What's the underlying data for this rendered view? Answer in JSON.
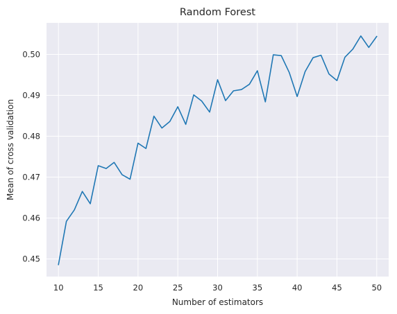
{
  "chart_data": {
    "type": "line",
    "title": "Random Forest",
    "xlabel": "Number of estimators",
    "ylabel": "Mean of cross validation",
    "xlim": [
      8.5,
      51.5
    ],
    "ylim": [
      0.4457,
      0.5077
    ],
    "xticks": [
      10,
      15,
      20,
      25,
      30,
      35,
      40,
      45,
      50
    ],
    "yticks": [
      0.45,
      0.46,
      0.47,
      0.48,
      0.49,
      0.5
    ],
    "xtick_labels": [
      "10",
      "15",
      "20",
      "25",
      "30",
      "35",
      "40",
      "45",
      "50"
    ],
    "ytick_labels": [
      "0.45",
      "0.46",
      "0.47",
      "0.48",
      "0.49",
      "0.50"
    ],
    "grid": true,
    "background_color": "#eaeaf2",
    "grid_color": "#ffffff",
    "series": [
      {
        "color": "#1f77b4",
        "x": [
          10,
          11,
          12,
          13,
          14,
          15,
          16,
          17,
          18,
          19,
          20,
          21,
          22,
          23,
          24,
          25,
          26,
          27,
          28,
          29,
          30,
          31,
          32,
          33,
          34,
          35,
          36,
          37,
          38,
          39,
          40,
          41,
          42,
          43,
          44,
          45,
          46,
          47,
          48,
          49,
          50
        ],
        "y": [
          0.4486,
          0.4592,
          0.462,
          0.4665,
          0.4635,
          0.4728,
          0.4721,
          0.4736,
          0.4706,
          0.4695,
          0.4783,
          0.477,
          0.4849,
          0.482,
          0.4836,
          0.4872,
          0.4829,
          0.4901,
          0.4886,
          0.4859,
          0.4938,
          0.4887,
          0.4911,
          0.4914,
          0.4927,
          0.496,
          0.4884,
          0.4999,
          0.4997,
          0.4956,
          0.4897,
          0.4958,
          0.4992,
          0.4998,
          0.4952,
          0.4936,
          0.4993,
          0.5013,
          0.5045,
          0.5017,
          0.5044
        ]
      }
    ]
  }
}
